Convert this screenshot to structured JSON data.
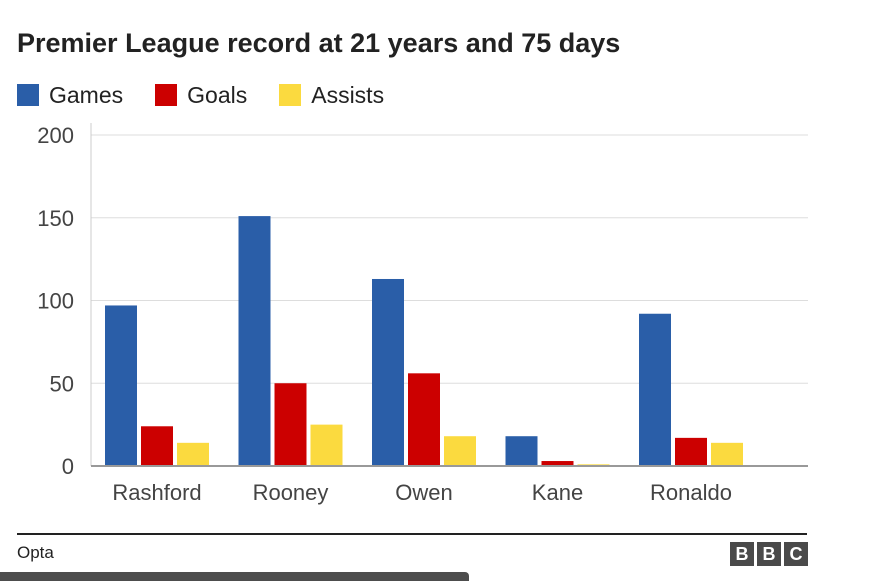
{
  "chart_data": {
    "type": "bar",
    "title": "Premier League record at 21 years and 75 days",
    "categories": [
      "Rashford",
      "Rooney",
      "Owen",
      "Kane",
      "Ronaldo"
    ],
    "series": [
      {
        "name": "Games",
        "color": "#2a5ea8",
        "values": [
          97,
          151,
          113,
          18,
          92
        ]
      },
      {
        "name": "Goals",
        "color": "#cc0000",
        "values": [
          24,
          50,
          56,
          3,
          17
        ]
      },
      {
        "name": "Assists",
        "color": "#fbda3f",
        "values": [
          14,
          25,
          18,
          1,
          14
        ]
      }
    ],
    "ylim": [
      0,
      200
    ],
    "yticks": [
      0,
      50,
      100,
      150,
      200
    ],
    "grid": true,
    "legend": "top-left"
  },
  "source": "Opta",
  "logo": [
    "B",
    "B",
    "C"
  ]
}
